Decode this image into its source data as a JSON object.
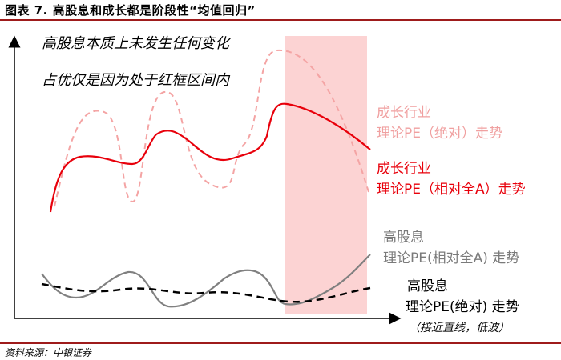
{
  "header": {
    "title": "图表 7. 高股息和成长都是阶段性“均值回归”"
  },
  "annotations": {
    "line1": "高股息本质上未发生任何变化",
    "line2": "占优仅是因为处于红框区间内"
  },
  "legend": {
    "growth_abs": {
      "line1": "成长行业",
      "line2": "理论PE（绝对）走势"
    },
    "growth_rel": {
      "line1": "成长行业",
      "line2": "理论PE（相对全A）走势"
    },
    "div_rel": {
      "line1": "高股息",
      "line2": "理论PE(相对全A) 走势"
    },
    "div_abs": {
      "line1": "高股息",
      "line2": "理论PE(绝对) 走势",
      "note": "（接近直线，低波）"
    }
  },
  "footer": {
    "source": "资料来源：中银证券"
  },
  "colors": {
    "highlight": "#fcd3d3",
    "growth_abs": "#f4a4a4",
    "growth_rel": "#e8000b",
    "div_rel": "#808080",
    "div_abs": "#000000",
    "rule": "#9e1b1b"
  }
}
